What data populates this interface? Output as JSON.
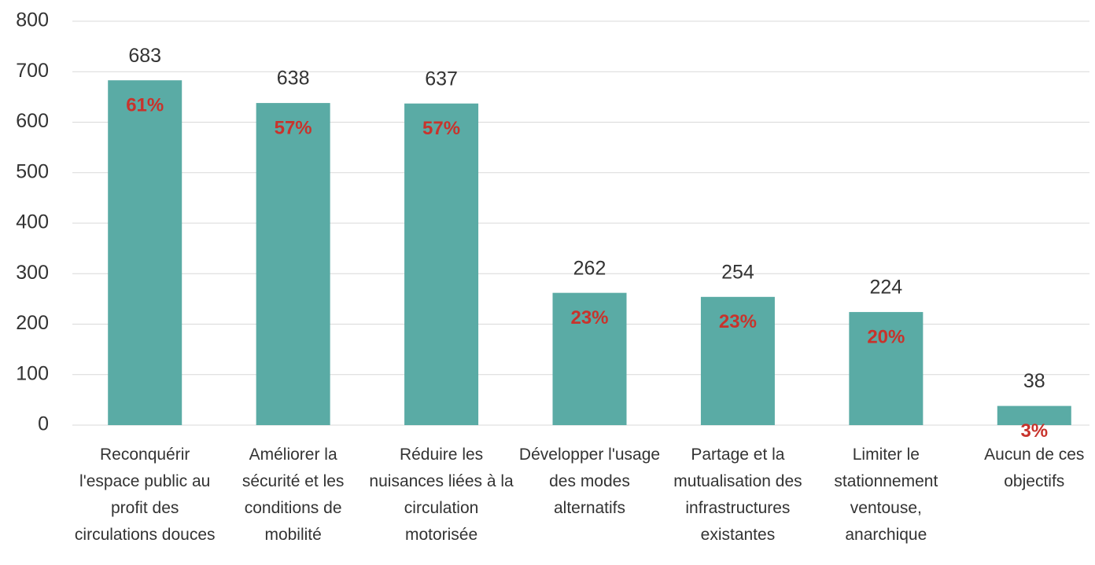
{
  "chart_data": {
    "type": "bar",
    "categories": [
      "Reconquérir l'espace public au profit des circulations douces",
      "Améliorer la sécurité et les conditions de mobilité",
      "Réduire les nuisances liées à la circulation motorisée",
      "Développer l'usage des modes alternatifs",
      "Partage et la mutualisation des infrastructures existantes",
      "Limiter le stationnement ventouse, anarchique",
      "Aucun de ces objectifs"
    ],
    "values": [
      683,
      638,
      637,
      262,
      254,
      224,
      38
    ],
    "shares": [
      {
        "value": 61,
        "label": "61%"
      },
      {
        "value": 57,
        "label": "57%"
      },
      {
        "value": 57,
        "label": "57%"
      },
      {
        "value": 23,
        "label": "23%"
      },
      {
        "value": 23,
        "label": "23%"
      },
      {
        "value": 20,
        "label": "20%"
      },
      {
        "value": 3,
        "label": "3%"
      }
    ],
    "color": "#5aaba5",
    "share_color": "#c8332c",
    "ylim": [
      0,
      800
    ],
    "yticks": [
      0,
      100,
      200,
      300,
      400,
      500,
      600,
      700,
      800
    ],
    "grid": true
  }
}
